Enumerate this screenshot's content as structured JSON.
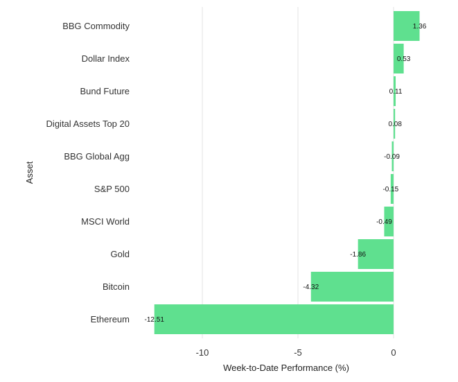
{
  "chart_data": {
    "type": "bar",
    "orientation": "horizontal",
    "categories": [
      "BBG Commodity",
      "Dollar Index",
      "Bund Future",
      "Digital Assets Top 20",
      "BBG Global Agg",
      "S&P 500",
      "MSCI World",
      "Gold",
      "Bitcoin",
      "Ethereum"
    ],
    "values": [
      1.36,
      0.53,
      0.11,
      0.08,
      -0.09,
      -0.15,
      -0.49,
      -1.86,
      -4.32,
      -12.51
    ],
    "data_labels": [
      "1.36",
      "0.53",
      "0.11",
      "0.08",
      "-0.09",
      "-0.15",
      "-0.49",
      "-1.86",
      "-4.32",
      "-12.51"
    ],
    "xlabel": "Week-to-Date Performance (%)",
    "ylabel": "Asset",
    "xlim": [
      -12.51,
      1.36
    ],
    "xticks": [
      -10,
      -5,
      0
    ],
    "xtick_labels": [
      "-10",
      "-5",
      "0"
    ],
    "grid": "vertical",
    "bar_color": "#5fe08f"
  }
}
